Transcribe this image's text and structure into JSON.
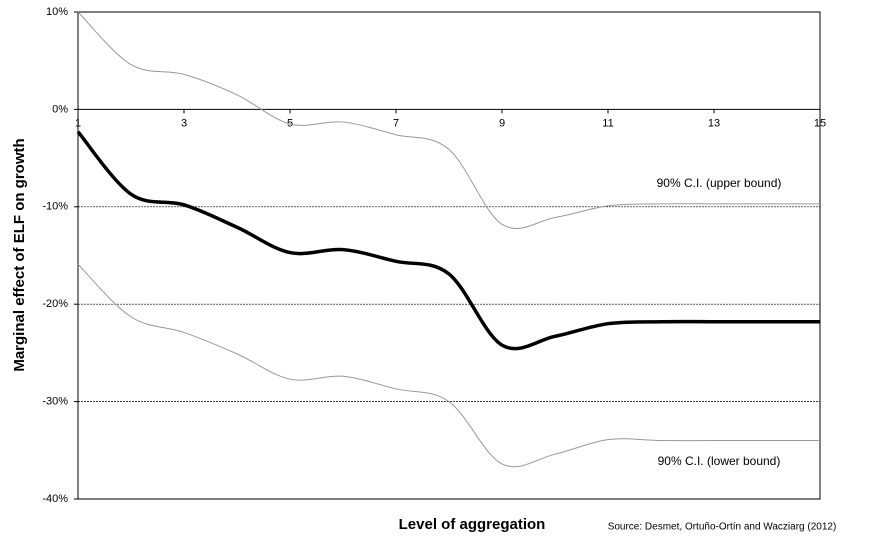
{
  "chart_data": {
    "type": "line",
    "y_label": "Marginal effect of ELF on growth",
    "x_label": "Level of aggregation",
    "source": "Source: Desmet, Ortuño-Ortín and Wacziarg (2012)",
    "annotations": [
      "90% C.I. (upper bound)",
      "90% C.I. (lower bound)"
    ],
    "x": [
      1,
      2,
      3,
      4,
      5,
      6,
      7,
      8,
      9,
      10,
      11,
      12,
      13,
      14,
      15
    ],
    "series": [
      {
        "color": "#000000",
        "width": 3.5,
        "values": [
          -2.3,
          -8.7,
          -9.8,
          -12.1,
          -14.7,
          -14.4,
          -15.6,
          -16.9,
          -24.2,
          -23.3,
          -22.0,
          -21.8,
          -21.8,
          -21.8,
          -21.8
        ]
      },
      {
        "color": "#999999",
        "width": 1,
        "values": [
          10,
          4.6,
          3.6,
          1.5,
          -1.5,
          -1.3,
          -2.6,
          -4.1,
          -11.8,
          -11.1,
          -9.9,
          -9.7,
          -9.7,
          -9.7,
          -9.7
        ]
      },
      {
        "color": "#999999",
        "width": 1,
        "values": [
          -15.9,
          -21.3,
          -22.9,
          -25.1,
          -27.7,
          -27.4,
          -28.7,
          -30.0,
          -36.4,
          -35.4,
          -33.9,
          -34.0,
          -34.0,
          -34.0,
          -34.0
        ]
      }
    ],
    "xlim": [
      1,
      15
    ],
    "xticks": [
      1,
      3,
      5,
      7,
      9,
      11,
      13,
      15
    ],
    "ylim": [
      -40,
      10
    ],
    "yticks": [
      {
        "value": 10,
        "label": "10%"
      },
      {
        "value": 0,
        "label": "0%"
      },
      {
        "value": -10,
        "label": "-10%"
      },
      {
        "value": -20,
        "label": "-20%"
      },
      {
        "value": -30,
        "label": "-30%"
      },
      {
        "value": -40,
        "label": "-40%"
      }
    ],
    "grid": true
  }
}
